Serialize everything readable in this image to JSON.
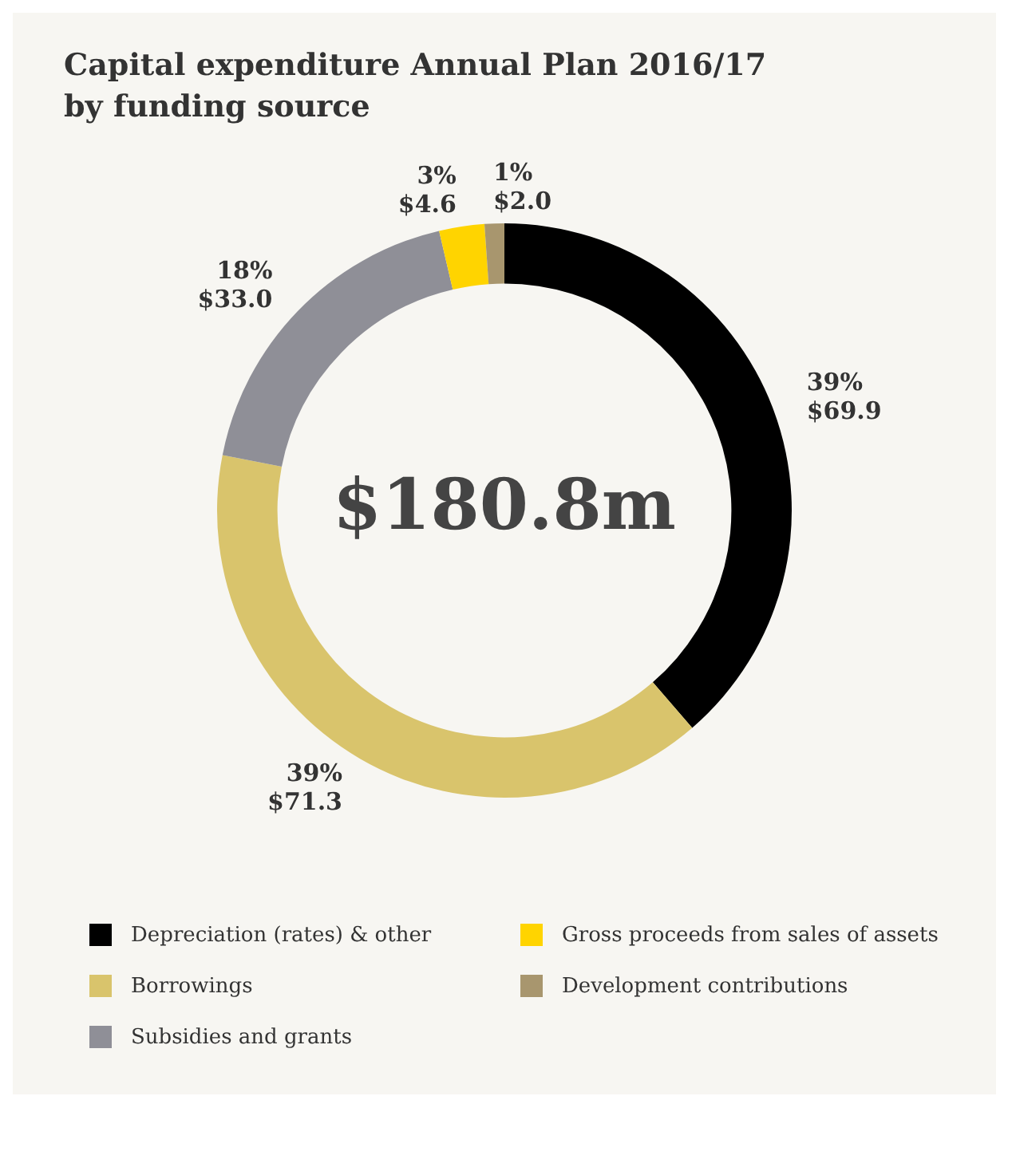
{
  "chart_data": {
    "type": "donut",
    "title": "Capital expenditure Annual Plan 2016/17\nby funding source",
    "categories": [
      "Depreciation (rates) & other",
      "Borrowings",
      "Subsidies and grants",
      "Gross proceeds from sales of assets",
      "Development contributions"
    ],
    "values": [
      69.9,
      71.3,
      33.0,
      4.6,
      2.0
    ],
    "colors": [
      "#000000",
      "#d9c46c",
      "#8f8f97",
      "#ffd400",
      "#a8966e"
    ],
    "value_labels": [
      "39%\n$69.9",
      "39%\n$71.3",
      "18%\n$33.0",
      "3%\n$4.6",
      "1%\n$2.0"
    ],
    "annotations": [
      "$180.8m"
    ],
    "legend": "bottom"
  }
}
